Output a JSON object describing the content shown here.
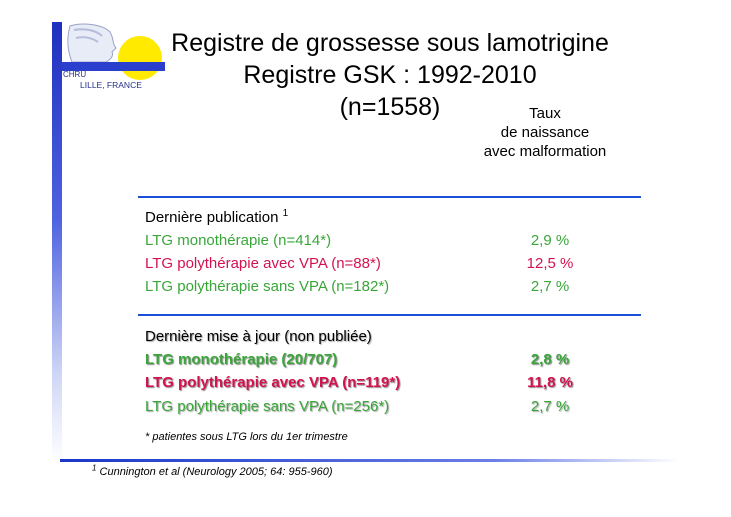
{
  "logo": {
    "line1": "CHRU",
    "line2": "LILLE, FRANCE"
  },
  "title": {
    "line1": "Registre de grossesse sous lamotrigine",
    "line2": "Registre GSK : 1992-2010",
    "line3": "(n=1558)"
  },
  "column_header": {
    "line1": "Taux",
    "line2": "de naissance",
    "line3": "avec malformation"
  },
  "section1": {
    "heading": "Dernière publication",
    "heading_sup": "1",
    "rows": [
      {
        "label": "LTG monothérapie (n=414*)",
        "value": "2,9 %",
        "color": "#3aa63a"
      },
      {
        "label": "LTG polythérapie avec VPA (n=88*)",
        "value": "12,5 %",
        "color": "#d4124f"
      },
      {
        "label": "LTG polythérapie sans VPA (n=182*)",
        "value": "2,7 %",
        "color": "#3aa63a"
      }
    ]
  },
  "section2": {
    "heading": "Dernière mise à jour (non publiée)",
    "rows": [
      {
        "label": "LTG monothérapie (20/707)",
        "value": "2,8 %",
        "color": "#3aa63a"
      },
      {
        "label": "LTG polythérapie avec VPA (n=119*)",
        "value": "11,8 %",
        "color": "#d4124f"
      },
      {
        "label": "LTG polythérapie sans VPA (n=256*)",
        "value": "2,7 %",
        "color": "#3aa63a"
      }
    ]
  },
  "note": "* patientes sous LTG lors du 1er trimestre",
  "reference": {
    "sup": "1",
    "text": " Cunnington et al (Neurology 2005; 64: 955-960)"
  }
}
